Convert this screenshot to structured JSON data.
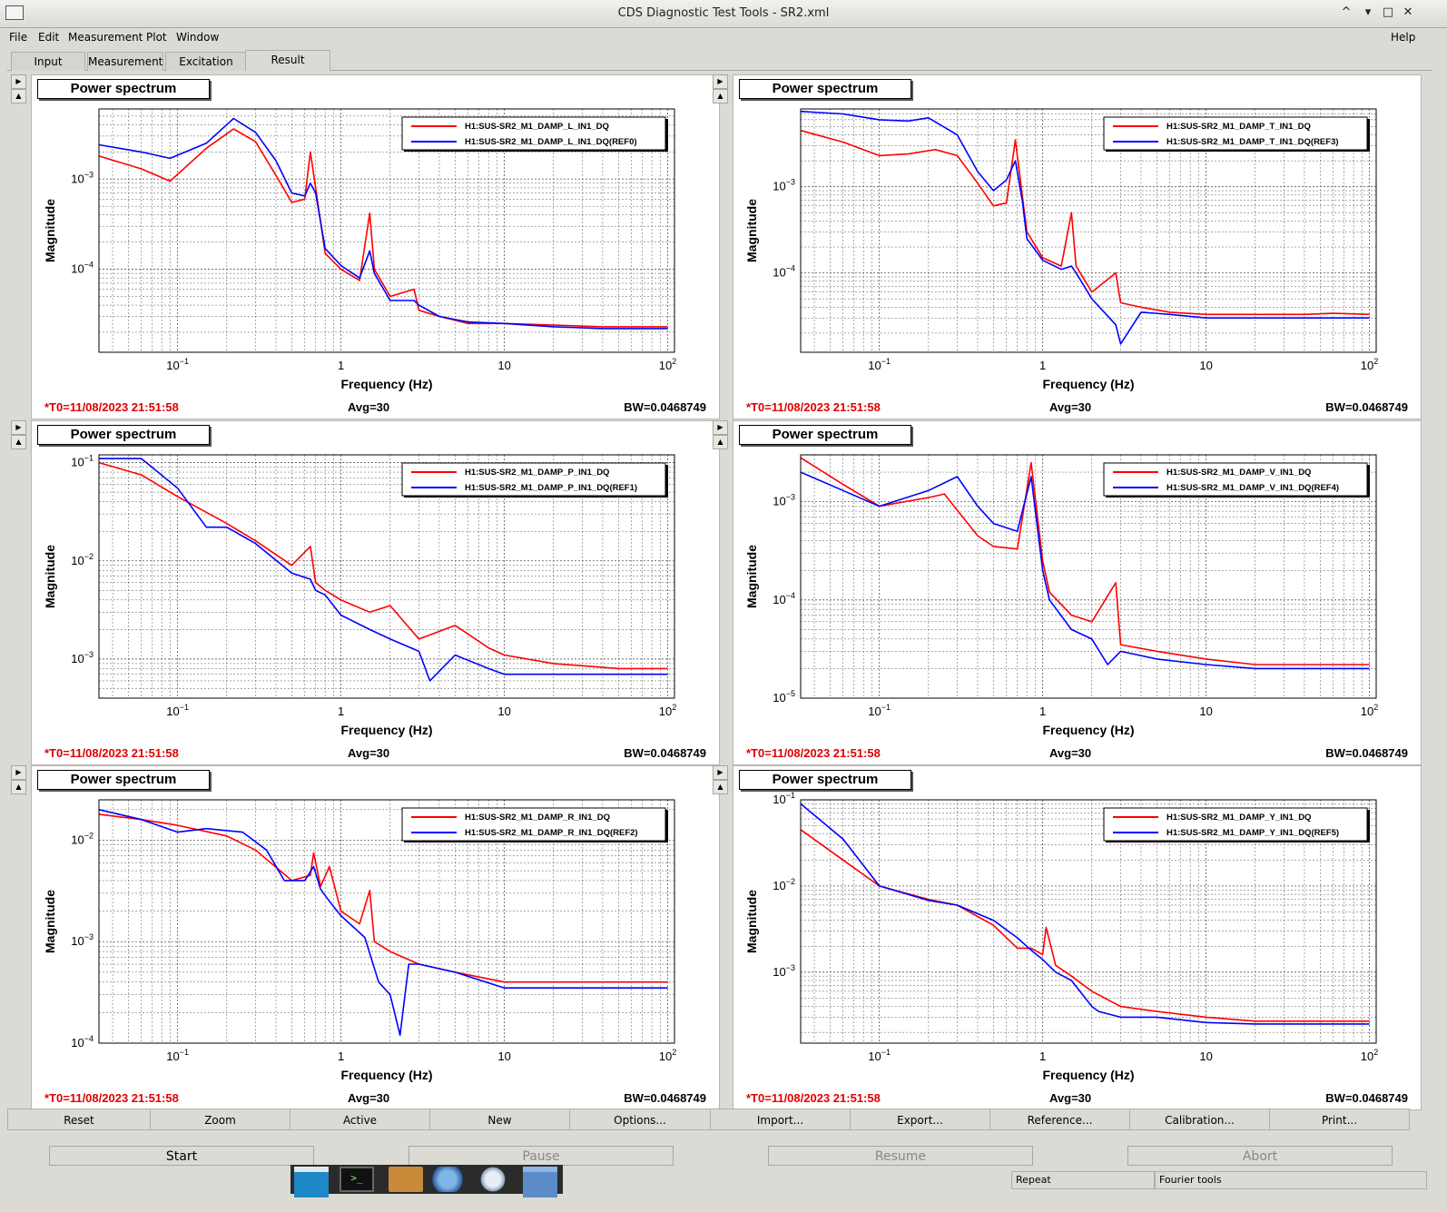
{
  "window": {
    "title": "CDS Diagnostic Test Tools - SR2.xml",
    "controls": [
      "^",
      "▾",
      "□",
      "✕"
    ]
  },
  "menu": {
    "file": "File",
    "edit": "Edit",
    "measurement": "Measurement",
    "plot": "Plot",
    "window": "Window",
    "help": "Help"
  },
  "tabs": [
    "Input",
    "Measurement",
    "Excitation",
    "Result"
  ],
  "panel_common": {
    "title": "Power spectrum",
    "t0": "*T0=11/08/2023 21:51:58",
    "avg": "Avg=30",
    "bw": "BW=0.0468749",
    "xlabel": "Frequency (Hz)",
    "ylabel": "Magnitude"
  },
  "colors": {
    "series_live": "#ff0000",
    "series_ref": "#0000ff",
    "t0_text": "#e00000"
  },
  "chart_data": [
    {
      "type": "line",
      "title": "Power spectrum",
      "xlabel": "Frequency (Hz)",
      "ylabel": "Magnitude",
      "xscale": "log",
      "yscale": "log",
      "xlim": [
        0.033,
        110
      ],
      "ylim": [
        1.2e-05,
        0.006
      ],
      "xticks": [
        "10^-1",
        "1",
        "10",
        "10^2"
      ],
      "yticks": [
        "10^-3",
        "10^-4"
      ],
      "legend": "top-right",
      "grid": true,
      "series": [
        {
          "name": "H1:SUS-SR2_M1_DAMP_L_IN1_DQ",
          "color": "#ff0000",
          "x": [
            0.033,
            0.06,
            0.09,
            0.15,
            0.22,
            0.3,
            0.4,
            0.5,
            0.6,
            0.65,
            0.7,
            0.8,
            1.0,
            1.3,
            1.5,
            1.6,
            2.0,
            2.8,
            3.0,
            4,
            6,
            10,
            20,
            40,
            60,
            100
          ],
          "y": [
            0.0018,
            0.0013,
            0.00095,
            0.0022,
            0.0036,
            0.0026,
            0.0011,
            0.00055,
            0.0006,
            0.002,
            0.0008,
            0.00015,
            0.0001,
            7.5e-05,
            0.00042,
            0.0001,
            5e-05,
            6e-05,
            3.5e-05,
            3e-05,
            2.5e-05,
            2.5e-05,
            2.4e-05,
            2.3e-05,
            2.3e-05,
            2.3e-05
          ]
        },
        {
          "name": "H1:SUS-SR2_M1_DAMP_L_IN1_DQ(REF0)",
          "color": "#0000ff",
          "x": [
            0.033,
            0.06,
            0.09,
            0.15,
            0.22,
            0.3,
            0.4,
            0.5,
            0.6,
            0.65,
            0.7,
            0.8,
            1.0,
            1.3,
            1.5,
            1.6,
            2.0,
            2.8,
            3.0,
            4,
            6,
            10,
            20,
            40,
            60,
            100
          ],
          "y": [
            0.0024,
            0.002,
            0.0017,
            0.0025,
            0.0047,
            0.0033,
            0.0016,
            0.0007,
            0.00065,
            0.0009,
            0.0007,
            0.00017,
            0.00011,
            8e-05,
            0.00016,
            9e-05,
            4.5e-05,
            4.5e-05,
            4e-05,
            3e-05,
            2.6e-05,
            2.5e-05,
            2.3e-05,
            2.2e-05,
            2.2e-05,
            2.2e-05
          ]
        }
      ]
    },
    {
      "type": "line",
      "title": "Power spectrum",
      "xlabel": "Frequency (Hz)",
      "ylabel": "Magnitude",
      "xscale": "log",
      "yscale": "log",
      "xlim": [
        0.033,
        110
      ],
      "ylim": [
        1.2e-05,
        0.008
      ],
      "xticks": [
        "10^-1",
        "1",
        "10",
        "10^2"
      ],
      "yticks": [
        "10^-3",
        "10^-4"
      ],
      "legend": "top-right",
      "grid": true,
      "series": [
        {
          "name": "H1:SUS-SR2_M1_DAMP_T_IN1_DQ",
          "color": "#ff0000",
          "x": [
            0.033,
            0.06,
            0.1,
            0.15,
            0.22,
            0.3,
            0.4,
            0.5,
            0.6,
            0.68,
            0.75,
            0.8,
            1.0,
            1.3,
            1.5,
            1.6,
            2.0,
            2.8,
            3.0,
            4,
            6,
            10,
            20,
            40,
            60,
            100
          ],
          "y": [
            0.0045,
            0.0033,
            0.0023,
            0.0024,
            0.0027,
            0.0023,
            0.0011,
            0.0006,
            0.00065,
            0.0035,
            0.0008,
            0.0003,
            0.00015,
            0.00012,
            0.0005,
            0.00012,
            6e-05,
            0.0001,
            4.5e-05,
            4e-05,
            3.5e-05,
            3.3e-05,
            3.3e-05,
            3.3e-05,
            3.4e-05,
            3.3e-05
          ]
        },
        {
          "name": "H1:SUS-SR2_M1_DAMP_T_IN1_DQ(REF3)",
          "color": "#0000ff",
          "x": [
            0.033,
            0.06,
            0.1,
            0.15,
            0.2,
            0.3,
            0.4,
            0.5,
            0.6,
            0.68,
            0.75,
            0.8,
            1.0,
            1.3,
            1.5,
            1.6,
            2.0,
            2.8,
            3.0,
            4,
            6,
            10,
            20,
            40,
            60,
            100
          ],
          "y": [
            0.0075,
            0.007,
            0.006,
            0.0058,
            0.0063,
            0.004,
            0.0015,
            0.0009,
            0.0012,
            0.002,
            0.0007,
            0.00025,
            0.00014,
            0.00011,
            0.00012,
            0.0001,
            5e-05,
            2.5e-05,
            1.5e-05,
            3.5e-05,
            3.3e-05,
            3e-05,
            3e-05,
            3e-05,
            3e-05,
            3e-05
          ]
        }
      ]
    },
    {
      "type": "line",
      "title": "Power spectrum",
      "xlabel": "Frequency (Hz)",
      "ylabel": "Magnitude",
      "xscale": "log",
      "yscale": "log",
      "xlim": [
        0.033,
        110
      ],
      "ylim": [
        0.0004,
        0.12
      ],
      "xticks": [
        "10^-1",
        "1",
        "10",
        "10^2"
      ],
      "yticks": [
        "10^-1",
        "10^-2",
        "10^-3"
      ],
      "legend": "top-right",
      "grid": true,
      "series": [
        {
          "name": "H1:SUS-SR2_M1_DAMP_P_IN1_DQ",
          "color": "#ff0000",
          "x": [
            0.033,
            0.06,
            0.1,
            0.2,
            0.3,
            0.5,
            0.65,
            0.7,
            0.8,
            1.0,
            1.5,
            2.0,
            3.0,
            5,
            8,
            10,
            20,
            50,
            100
          ],
          "y": [
            0.1,
            0.075,
            0.045,
            0.024,
            0.016,
            0.009,
            0.014,
            0.006,
            0.005,
            0.004,
            0.003,
            0.0035,
            0.0016,
            0.0022,
            0.0013,
            0.0011,
            0.0009,
            0.0008,
            0.0008
          ]
        },
        {
          "name": "H1:SUS-SR2_M1_DAMP_P_IN1_DQ(REF1)",
          "color": "#0000ff",
          "x": [
            0.033,
            0.06,
            0.1,
            0.15,
            0.2,
            0.3,
            0.5,
            0.65,
            0.7,
            0.8,
            1.0,
            1.5,
            2.0,
            3.0,
            3.5,
            5,
            8,
            10,
            20,
            50,
            100
          ],
          "y": [
            0.11,
            0.11,
            0.055,
            0.022,
            0.022,
            0.015,
            0.0075,
            0.0065,
            0.005,
            0.0045,
            0.0028,
            0.002,
            0.0016,
            0.0012,
            0.0006,
            0.0011,
            0.0008,
            0.0007,
            0.0007,
            0.0007,
            0.0007
          ]
        }
      ]
    },
    {
      "type": "line",
      "title": "Power spectrum",
      "xlabel": "Frequency (Hz)",
      "ylabel": "Magnitude",
      "xscale": "log",
      "yscale": "log",
      "xlim": [
        0.033,
        110
      ],
      "ylim": [
        1e-05,
        0.003
      ],
      "xticks": [
        "10^-1",
        "1",
        "10",
        "10^2"
      ],
      "yticks": [
        "10^-3",
        "10^-4"
      ],
      "legend": "top-right",
      "grid": true,
      "series": [
        {
          "name": "H1:SUS-SR2_M1_DAMP_V_IN1_DQ",
          "color": "#ff0000",
          "x": [
            0.033,
            0.06,
            0.1,
            0.2,
            0.25,
            0.4,
            0.5,
            0.7,
            0.85,
            1.0,
            1.1,
            1.5,
            2.0,
            2.8,
            3.0,
            5,
            10,
            20,
            60,
            100
          ],
          "y": [
            0.0028,
            0.0015,
            0.0009,
            0.0011,
            0.0012,
            0.00045,
            0.00035,
            0.00033,
            0.0025,
            0.00025,
            0.00012,
            7e-05,
            6e-05,
            0.00015,
            3.5e-05,
            3e-05,
            2.5e-05,
            2.2e-05,
            2.2e-05,
            2.2e-05
          ]
        },
        {
          "name": "H1:SUS-SR2_M1_DAMP_V_IN1_DQ(REF4)",
          "color": "#0000ff",
          "x": [
            0.033,
            0.06,
            0.1,
            0.2,
            0.3,
            0.4,
            0.5,
            0.7,
            0.85,
            1.0,
            1.1,
            1.5,
            2.0,
            2.5,
            3.0,
            5,
            10,
            20,
            60,
            100
          ],
          "y": [
            0.002,
            0.0013,
            0.0009,
            0.0013,
            0.0018,
            0.0009,
            0.0006,
            0.0005,
            0.0018,
            0.0002,
            0.0001,
            5e-05,
            4e-05,
            2.2e-05,
            3e-05,
            2.5e-05,
            2.2e-05,
            2e-05,
            2e-05,
            2e-05
          ]
        }
      ]
    },
    {
      "type": "line",
      "title": "Power spectrum",
      "xlabel": "Frequency (Hz)",
      "ylabel": "Magnitude",
      "xscale": "log",
      "yscale": "log",
      "xlim": [
        0.033,
        110
      ],
      "ylim": [
        0.0001,
        0.025
      ],
      "xticks": [
        "10^-1",
        "1",
        "10",
        "10^2"
      ],
      "yticks": [
        "10^-2",
        "10^-3",
        "10^-4"
      ],
      "legend": "top-right",
      "grid": true,
      "series": [
        {
          "name": "H1:SUS-SR2_M1_DAMP_R_IN1_DQ",
          "color": "#ff0000",
          "x": [
            0.033,
            0.06,
            0.1,
            0.2,
            0.3,
            0.5,
            0.65,
            0.68,
            0.75,
            0.85,
            1.0,
            1.3,
            1.5,
            1.6,
            2.0,
            3.0,
            5,
            10,
            20,
            50,
            100
          ],
          "y": [
            0.018,
            0.016,
            0.014,
            0.011,
            0.008,
            0.004,
            0.0045,
            0.0075,
            0.0035,
            0.0055,
            0.002,
            0.0015,
            0.0032,
            0.001,
            0.0008,
            0.0006,
            0.0005,
            0.0004,
            0.0004,
            0.0004,
            0.0004
          ]
        },
        {
          "name": "H1:SUS-SR2_M1_DAMP_R_IN1_DQ(REF2)",
          "color": "#0000ff",
          "x": [
            0.033,
            0.06,
            0.1,
            0.15,
            0.25,
            0.35,
            0.45,
            0.6,
            0.68,
            0.75,
            0.85,
            1.0,
            1.4,
            1.7,
            2.0,
            2.3,
            2.6,
            3.0,
            5,
            10,
            20,
            50,
            100
          ],
          "y": [
            0.02,
            0.016,
            0.012,
            0.013,
            0.012,
            0.008,
            0.004,
            0.004,
            0.0055,
            0.0033,
            0.0025,
            0.0018,
            0.0011,
            0.0004,
            0.0003,
            0.00012,
            0.0006,
            0.0006,
            0.0005,
            0.00035,
            0.00035,
            0.00035,
            0.00035
          ]
        }
      ]
    },
    {
      "type": "line",
      "title": "Power spectrum",
      "xlabel": "Frequency (Hz)",
      "ylabel": "Magnitude",
      "xscale": "log",
      "yscale": "log",
      "xlim": [
        0.033,
        110
      ],
      "ylim": [
        0.00015,
        0.1
      ],
      "xticks": [
        "10^-1",
        "1",
        "10",
        "10^2"
      ],
      "yticks": [
        "10^-1",
        "10^-2",
        "10^-3"
      ],
      "legend": "top-right",
      "grid": true,
      "series": [
        {
          "name": "H1:SUS-SR2_M1_DAMP_Y_IN1_DQ",
          "color": "#ff0000",
          "x": [
            0.033,
            0.06,
            0.1,
            0.2,
            0.3,
            0.5,
            0.7,
            0.85,
            1.0,
            1.05,
            1.2,
            1.5,
            2.0,
            3.0,
            5,
            10,
            20,
            50,
            100
          ],
          "y": [
            0.045,
            0.02,
            0.01,
            0.007,
            0.006,
            0.0035,
            0.0019,
            0.0019,
            0.0016,
            0.0033,
            0.0012,
            0.0009,
            0.0006,
            0.0004,
            0.00035,
            0.0003,
            0.00027,
            0.00027,
            0.00027
          ]
        },
        {
          "name": "H1:SUS-SR2_M1_DAMP_Y_IN1_DQ(REF5)",
          "color": "#0000ff",
          "x": [
            0.033,
            0.06,
            0.1,
            0.2,
            0.3,
            0.5,
            0.7,
            0.85,
            1.0,
            1.2,
            1.5,
            2.0,
            2.2,
            3.0,
            5,
            10,
            20,
            50,
            100
          ],
          "y": [
            0.09,
            0.035,
            0.01,
            0.0068,
            0.006,
            0.004,
            0.0025,
            0.0018,
            0.0014,
            0.001,
            0.0008,
            0.0004,
            0.00035,
            0.0003,
            0.0003,
            0.00026,
            0.00025,
            0.00025,
            0.00025
          ]
        }
      ]
    }
  ],
  "buttons": [
    "Reset",
    "Zoom",
    "Active",
    "New",
    "Options...",
    "Import...",
    "Export...",
    "Reference...",
    "Calibration...",
    "Print..."
  ],
  "controls": {
    "start": "Start",
    "pause": "Pause",
    "resume": "Resume",
    "abort": "Abort"
  },
  "status": {
    "repeat": "Repeat",
    "fourier": "Fourier tools"
  }
}
